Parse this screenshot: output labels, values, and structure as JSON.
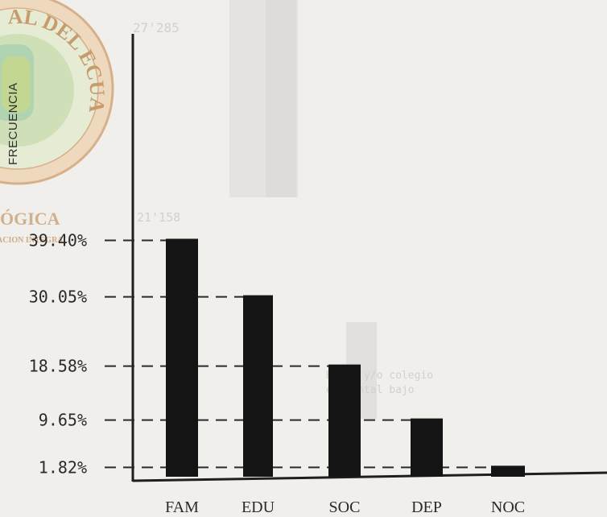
{
  "chart_data": {
    "type": "bar",
    "categories": [
      "FAM",
      "EDU",
      "SOC",
      "DEP",
      "NOC"
    ],
    "values": [
      39.4,
      30.05,
      18.58,
      9.65,
      1.82
    ],
    "value_labels": [
      "39.40%",
      "30.05%",
      "18.58%",
      "9.65%",
      "1.82%"
    ],
    "ylabel": "FRECUENCIA",
    "title": "",
    "xlabel": "",
    "grid": false,
    "legend": "none",
    "bar_color": "#141414",
    "guide_style": "dashed"
  },
  "watermark": {
    "seal_text": "AL DEL ECUADOR",
    "caption_fragment": "ÓGICA",
    "caption_fragment_2": "ACION INTEGRAL",
    "seal_color": "#c79b6e"
  }
}
